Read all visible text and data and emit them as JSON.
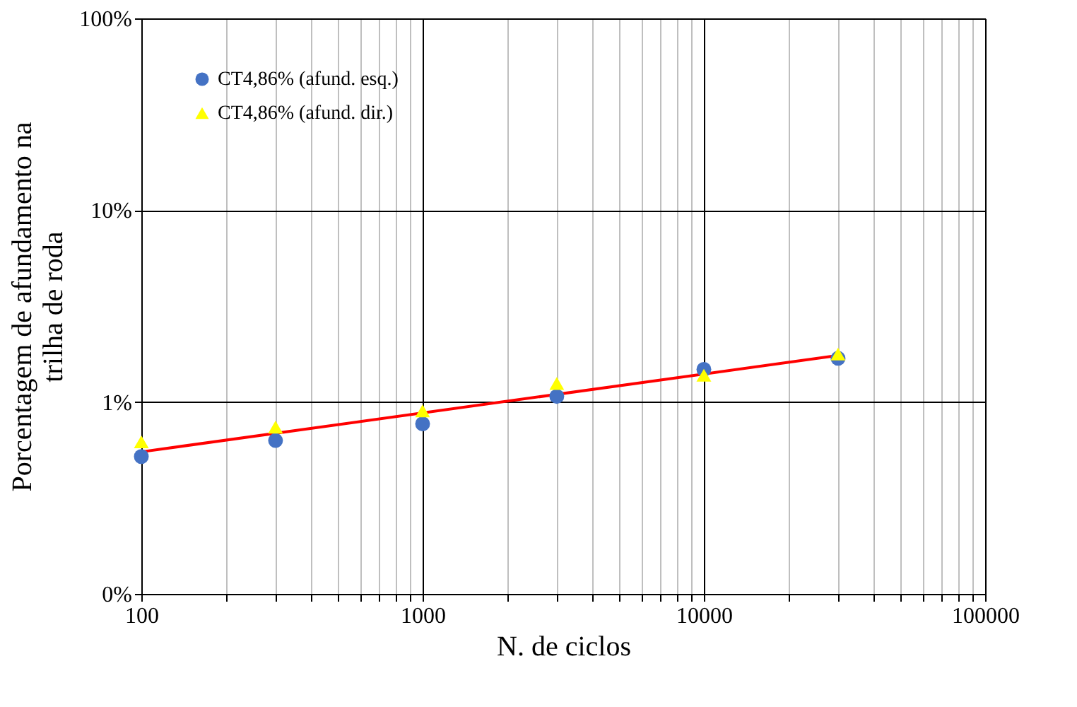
{
  "chart_data": {
    "type": "scatter",
    "xlabel": "N. de ciclos",
    "ylabel": "Porcentagem de afundamento na\ntrilha de roda",
    "log": "xy",
    "grid": true,
    "legend": "top left",
    "xlim": [
      100,
      100000
    ],
    "ylim": [
      0.1,
      100
    ],
    "xticks": [
      100,
      {
        "value": 200,
        "label": null
      },
      {
        "value": 300,
        "label": null
      },
      {
        "value": 400,
        "label": null
      },
      {
        "value": 500,
        "label": null
      },
      {
        "value": 600,
        "label": null
      },
      {
        "value": 700,
        "label": null
      },
      {
        "value": 800,
        "label": null
      },
      {
        "value": 900,
        "label": null
      },
      1000,
      {
        "value": 2000,
        "label": null
      },
      {
        "value": 3000,
        "label": null
      },
      {
        "value": 4000,
        "label": null
      },
      {
        "value": 5000,
        "label": null
      },
      {
        "value": 6000,
        "label": null
      },
      {
        "value": 7000,
        "label": null
      },
      {
        "value": 8000,
        "label": null
      },
      {
        "value": 9000,
        "label": null
      },
      10000,
      {
        "value": 20000,
        "label": null
      },
      {
        "value": 30000,
        "label": null
      },
      {
        "value": 40000,
        "label": null
      },
      {
        "value": 50000,
        "label": null
      },
      {
        "value": 60000,
        "label": null
      },
      {
        "value": 70000,
        "label": null
      },
      {
        "value": 80000,
        "label": null
      },
      {
        "value": 90000,
        "label": null
      },
      100000
    ],
    "yticks": [
      {
        "value": 0.1,
        "label": "0%"
      },
      {
        "value": 1,
        "label": "1%"
      },
      {
        "value": 10,
        "label": "10%"
      },
      {
        "value": 100,
        "label": "100%"
      }
    ],
    "x": [
      100,
      300,
      1000,
      3000,
      10000,
      30000
    ],
    "series": [
      {
        "name": "CT4,86% (afund. esq.)",
        "type": "scatter",
        "marker": "circle",
        "color": "#4472c4",
        "values": [
          0.52,
          0.63,
          0.77,
          1.07,
          1.48,
          1.69
        ]
      },
      {
        "name": "CT4,86% (afund. dir.)",
        "type": "scatter",
        "marker": "triangle",
        "color": "#ffff00",
        "values": [
          0.62,
          0.74,
          0.9,
          1.25,
          1.38,
          1.78
        ]
      },
      {
        "type": "line",
        "marker": "none",
        "line_style": "solid",
        "color": "#ff0000",
        "x": [
          100,
          30000
        ],
        "values": [
          0.55,
          1.75
        ]
      }
    ]
  }
}
